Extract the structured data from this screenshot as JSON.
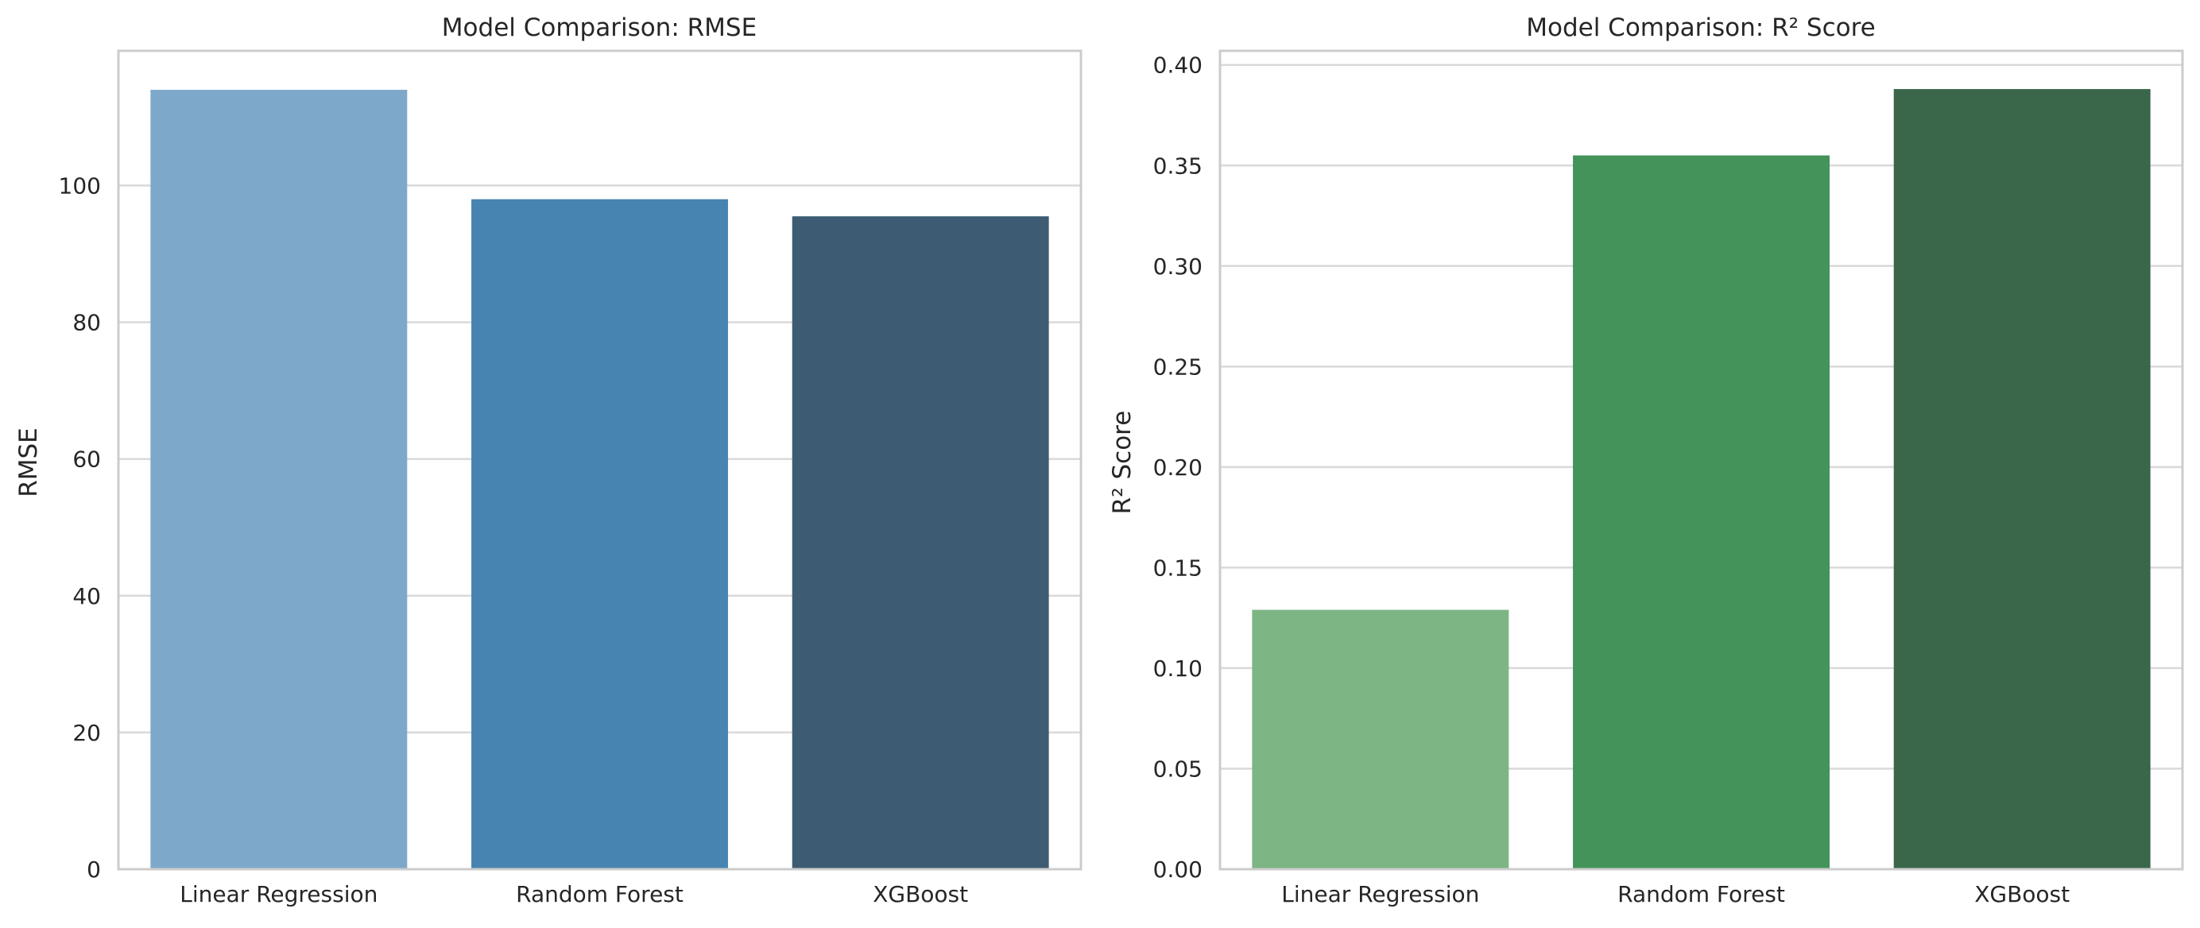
{
  "chart_data": [
    {
      "type": "bar",
      "title": "Model Comparison: RMSE",
      "xlabel": "",
      "ylabel": "RMSE",
      "categories": [
        "Linear Regression",
        "Random Forest",
        "XGBoost"
      ],
      "values": [
        114.0,
        98.0,
        95.5
      ],
      "ylim": [
        0,
        119.7
      ],
      "yticks": [
        0,
        20,
        40,
        60,
        80,
        100
      ],
      "ytick_labels": [
        "0",
        "20",
        "40",
        "60",
        "80",
        "100"
      ],
      "colors": [
        "#7ea8c9",
        "#4884b1",
        "#3d5c73"
      ],
      "grid": true
    },
    {
      "type": "bar",
      "title": "Model Comparison: R² Score",
      "xlabel": "",
      "ylabel": "R² Score",
      "categories": [
        "Linear Regression",
        "Random Forest",
        "XGBoost"
      ],
      "values": [
        0.129,
        0.355,
        0.388
      ],
      "ylim": [
        0,
        0.407
      ],
      "yticks": [
        0,
        0.05,
        0.1,
        0.15,
        0.2,
        0.25,
        0.3,
        0.35,
        0.4
      ],
      "ytick_labels": [
        "0.00",
        "0.05",
        "0.10",
        "0.15",
        "0.20",
        "0.25",
        "0.30",
        "0.35",
        "0.40"
      ],
      "colors": [
        "#7db585",
        "#43935a",
        "#3a664a"
      ],
      "grid": true
    }
  ]
}
